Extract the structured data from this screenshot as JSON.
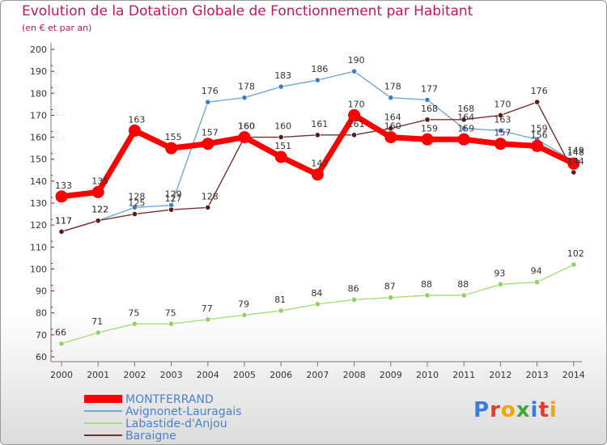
{
  "title": "Evolution de la Dotation Globale de Fonctionnement par Habitant",
  "subtitle": "(en € et par an)",
  "logo": "Proxiti",
  "chart_data": {
    "type": "line",
    "title": "Evolution de la Dotation Globale de Fonctionnement par Habitant",
    "subtitle": "(en € et par an)",
    "x": [
      "2000",
      "2001",
      "2002",
      "2003",
      "2004",
      "2005",
      "2006",
      "2007",
      "2008",
      "2009",
      "2010",
      "2011",
      "2012",
      "2013",
      "2014"
    ],
    "ylim": [
      60,
      200
    ],
    "yticks": [
      60,
      70,
      80,
      90,
      100,
      110,
      120,
      130,
      140,
      150,
      160,
      170,
      180,
      190,
      200
    ],
    "grid": false,
    "legend": "bottom-left",
    "series": [
      {
        "name": "MONTFERRAND",
        "color": "#ff0000",
        "marker": "#ff0000",
        "values": [
          133,
          135,
          163,
          155,
          157,
          160,
          151,
          143,
          170,
          160,
          159,
          159,
          157,
          156,
          148
        ]
      },
      {
        "name": "Avignonet-Lauragais",
        "color": "#6fa8dc",
        "marker": "#3d7cc9",
        "values": [
          117,
          122,
          128,
          129,
          176,
          178,
          183,
          186,
          190,
          178,
          177,
          164,
          163,
          159,
          149
        ]
      },
      {
        "name": "Labastide-d'Anjou",
        "color": "#a9dc7c",
        "marker": "#8cd35f",
        "values": [
          66,
          71,
          75,
          75,
          77,
          79,
          81,
          84,
          86,
          87,
          88,
          88,
          93,
          94,
          102
        ]
      },
      {
        "name": "Baraigne",
        "color": "#7a2e2e",
        "marker": "#5a1a1a",
        "values": [
          117,
          122,
          125,
          127,
          128,
          160,
          160,
          161,
          161,
          164,
          168,
          168,
          170,
          176,
          144
        ]
      }
    ]
  }
}
